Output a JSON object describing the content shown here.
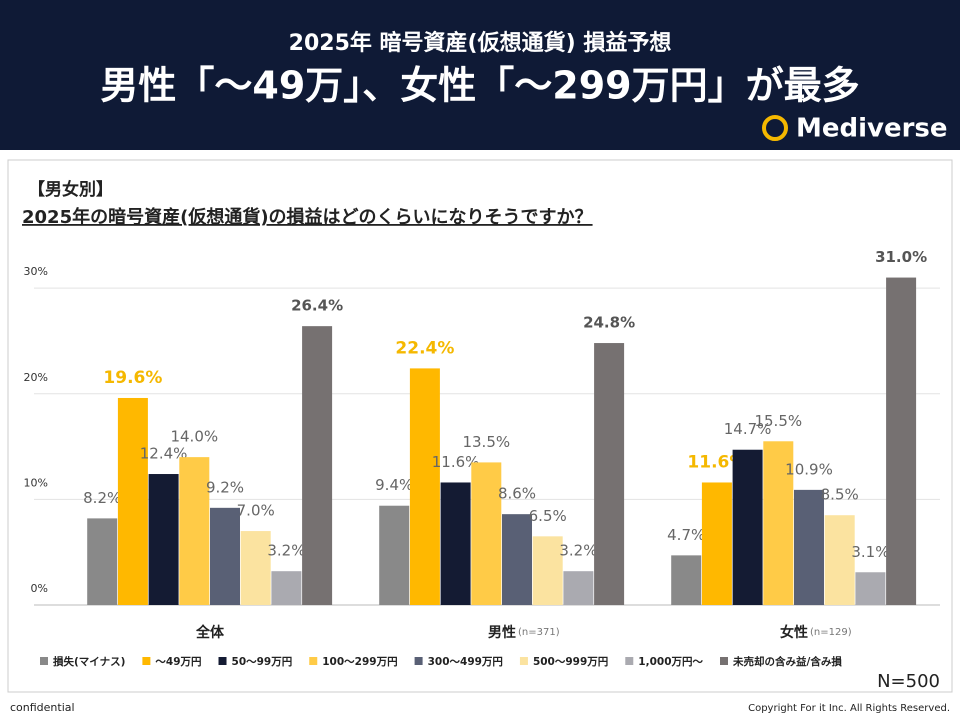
{
  "header": {
    "subtitle": "2025年 暗号資産(仮想通貨) 損益予想",
    "title": "男性「～49万」、女性「～299万円」が最多",
    "logo": "Mediverse"
  },
  "chart_data": {
    "type": "bar",
    "section_label": "【男女別】",
    "question": "2025年の暗号資産(仮想通貨)の損益はどのくらいになりそうですか？",
    "categories": [
      "全体",
      "男性",
      "女性"
    ],
    "category_notes": [
      null,
      "(n=371)",
      "(n=129)"
    ],
    "series": [
      {
        "name": "損失(マイナス)",
        "color": "#898989",
        "values": [
          8.2,
          9.4,
          4.7
        ],
        "value_labels": [
          "8.2%",
          "9.4%",
          "4.7%"
        ]
      },
      {
        "name": "～49万円",
        "color": "#ffb800",
        "values": [
          19.6,
          22.4,
          11.6
        ],
        "value_labels": [
          "19.6%",
          "22.4%",
          "11.6%"
        ]
      },
      {
        "name": "50～99万円",
        "color": "#141b33",
        "values": [
          12.4,
          11.6,
          14.7
        ],
        "value_labels": [
          "12.4%",
          "11.6%",
          "14.7%"
        ]
      },
      {
        "name": "100～299万円",
        "color": "#ffcb47",
        "values": [
          14.0,
          13.5,
          15.5
        ],
        "value_labels": [
          "14.0%",
          "13.5%",
          "15.5%"
        ]
      },
      {
        "name": "300～499万円",
        "color": "#596075",
        "values": [
          9.2,
          8.6,
          10.9
        ],
        "value_labels": [
          "9.2%",
          "8.6%",
          "10.9%"
        ]
      },
      {
        "name": "500～999万円",
        "color": "#fbe3a0",
        "values": [
          7.0,
          6.5,
          8.5
        ],
        "value_labels": [
          "7.0%",
          "6.5%",
          "8.5%"
        ]
      },
      {
        "name": "1,000万円～",
        "color": "#aaaab0",
        "values": [
          3.2,
          3.2,
          3.1
        ],
        "value_labels": [
          "3.2%",
          "3.2%",
          "3.1%"
        ]
      },
      {
        "name": "未売却の含み益/含み損",
        "color": "#767171",
        "values": [
          26.4,
          24.8,
          31.0
        ],
        "value_labels": [
          "26.4%",
          "24.8%",
          "31.0%"
        ]
      }
    ],
    "ylim": [
      0,
      32
    ],
    "yticks": [
      {
        "value": 0,
        "label": "0%"
      },
      {
        "value": 10,
        "label": "10%"
      },
      {
        "value": 20,
        "label": "20%"
      },
      {
        "value": 30,
        "label": "30%"
      }
    ],
    "grid": true,
    "sample_size": "N=500"
  },
  "footer": {
    "left": "confidential",
    "right": "Copyright For it Inc. All Rights Reserved."
  }
}
